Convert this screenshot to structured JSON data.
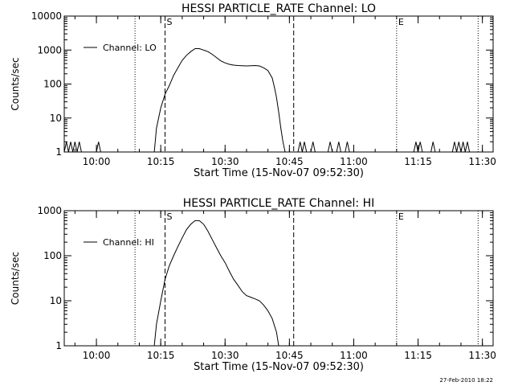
{
  "footer": {
    "timestamp": "27-Feb-2010 18:22"
  },
  "chart_data": [
    {
      "type": "line",
      "title": "HESSI PARTICLE_RATE Channel: LO",
      "xlabel": "Start Time (15-Nov-07 09:52:30)",
      "ylabel": "Counts/sec",
      "yscale": "log",
      "ylim": [
        1,
        10000
      ],
      "yticks": [
        "1",
        "10",
        "100",
        "1000",
        "10000"
      ],
      "xlim": [
        "09:52:30",
        "11:32:30"
      ],
      "xticks": [
        "10:00",
        "10:15",
        "10:30",
        "10:45",
        "11:00",
        "11:15",
        "11:30"
      ],
      "legend": {
        "entry": "Channel: LO",
        "placement": "top-left"
      },
      "markers": [
        {
          "time": "10:09:00",
          "label": "",
          "style": "dotted"
        },
        {
          "time": "10:16:00",
          "label": "S",
          "style": "dashed"
        },
        {
          "time": "10:46:00",
          "label": "",
          "style": "dashed"
        },
        {
          "time": "11:10:00",
          "label": "E",
          "style": "dotted"
        },
        {
          "time": "11:29:00",
          "label": "",
          "style": "dotted"
        }
      ],
      "series": [
        {
          "name": "Channel: LO",
          "points": [
            [
              "09:52:30",
              1
            ],
            [
              "09:53:00",
              2
            ],
            [
              "09:53:30",
              1
            ],
            [
              "09:54:00",
              2
            ],
            [
              "09:54:30",
              1
            ],
            [
              "09:55:00",
              2
            ],
            [
              "09:55:30",
              1
            ],
            [
              "09:56:00",
              2
            ],
            [
              "09:56:30",
              1
            ],
            [
              "10:00:00",
              1
            ],
            [
              "10:00:30",
              2
            ],
            [
              "10:01:00",
              1
            ],
            [
              "10:13:30",
              1
            ],
            [
              "10:14:00",
              5
            ],
            [
              "10:15:00",
              20
            ],
            [
              "10:16:00",
              50
            ],
            [
              "10:17:00",
              90
            ],
            [
              "10:18:00",
              180
            ],
            [
              "10:19:00",
              300
            ],
            [
              "10:20:00",
              500
            ],
            [
              "10:21:00",
              700
            ],
            [
              "10:22:00",
              900
            ],
            [
              "10:23:00",
              1100
            ],
            [
              "10:24:00",
              1100
            ],
            [
              "10:25:00",
              1000
            ],
            [
              "10:26:00",
              900
            ],
            [
              "10:27:00",
              750
            ],
            [
              "10:28:00",
              600
            ],
            [
              "10:29:00",
              480
            ],
            [
              "10:30:00",
              420
            ],
            [
              "10:31:00",
              380
            ],
            [
              "10:32:00",
              360
            ],
            [
              "10:33:00",
              350
            ],
            [
              "10:34:00",
              345
            ],
            [
              "10:35:00",
              340
            ],
            [
              "10:36:00",
              345
            ],
            [
              "10:37:00",
              350
            ],
            [
              "10:38:00",
              340
            ],
            [
              "10:39:00",
              300
            ],
            [
              "10:40:00",
              250
            ],
            [
              "10:41:00",
              150
            ],
            [
              "10:41:30",
              80
            ],
            [
              "10:42:00",
              40
            ],
            [
              "10:42:30",
              15
            ],
            [
              "10:43:00",
              5
            ],
            [
              "10:43:30",
              2
            ],
            [
              "10:44:00",
              1
            ],
            [
              "10:47:00",
              1
            ],
            [
              "10:47:30",
              2
            ],
            [
              "10:48:00",
              1
            ],
            [
              "10:48:30",
              2
            ],
            [
              "10:49:00",
              1
            ],
            [
              "10:50:00",
              1
            ],
            [
              "10:50:30",
              2
            ],
            [
              "10:51:00",
              1
            ],
            [
              "10:54:00",
              1
            ],
            [
              "10:54:30",
              2
            ],
            [
              "10:55:00",
              1
            ],
            [
              "10:56:00",
              1
            ],
            [
              "10:56:30",
              2
            ],
            [
              "10:57:00",
              1
            ],
            [
              "10:58:00",
              1
            ],
            [
              "10:58:30",
              2
            ],
            [
              "10:59:00",
              1
            ],
            [
              "11:14:00",
              1
            ],
            [
              "11:14:30",
              2
            ],
            [
              "11:15:00",
              1
            ],
            [
              "11:15:30",
              2
            ],
            [
              "11:16:00",
              1
            ],
            [
              "11:18:00",
              1
            ],
            [
              "11:18:30",
              2
            ],
            [
              "11:19:00",
              1
            ],
            [
              "11:23:00",
              1
            ],
            [
              "11:23:30",
              2
            ],
            [
              "11:24:00",
              1
            ],
            [
              "11:24:30",
              2
            ],
            [
              "11:25:00",
              1
            ],
            [
              "11:25:30",
              2
            ],
            [
              "11:26:00",
              1
            ],
            [
              "11:26:30",
              2
            ],
            [
              "11:27:00",
              1
            ]
          ]
        }
      ]
    },
    {
      "type": "line",
      "title": "HESSI PARTICLE_RATE Channel: HI",
      "xlabel": "Start Time (15-Nov-07 09:52:30)",
      "ylabel": "Counts/sec",
      "yscale": "log",
      "ylim": [
        1,
        1000
      ],
      "yticks": [
        "1",
        "10",
        "100",
        "1000"
      ],
      "xlim": [
        "09:52:30",
        "11:32:30"
      ],
      "xticks": [
        "10:00",
        "10:15",
        "10:30",
        "10:45",
        "11:00",
        "11:15",
        "11:30"
      ],
      "legend": {
        "entry": "Channel: HI",
        "placement": "top-left"
      },
      "markers": [
        {
          "time": "10:09:00",
          "label": "",
          "style": "dotted"
        },
        {
          "time": "10:16:00",
          "label": "S",
          "style": "dashed"
        },
        {
          "time": "10:46:00",
          "label": "",
          "style": "dashed"
        },
        {
          "time": "11:10:00",
          "label": "E",
          "style": "dotted"
        },
        {
          "time": "11:29:00",
          "label": "",
          "style": "dotted"
        }
      ],
      "series": [
        {
          "name": "Channel: HI",
          "points": [
            [
              "10:13:30",
              1
            ],
            [
              "10:14:00",
              3
            ],
            [
              "10:15:00",
              10
            ],
            [
              "10:16:00",
              30
            ],
            [
              "10:17:00",
              60
            ],
            [
              "10:18:00",
              100
            ],
            [
              "10:19:00",
              160
            ],
            [
              "10:20:00",
              250
            ],
            [
              "10:21:00",
              380
            ],
            [
              "10:22:00",
              500
            ],
            [
              "10:23:00",
              600
            ],
            [
              "10:24:00",
              600
            ],
            [
              "10:25:00",
              500
            ],
            [
              "10:26:00",
              350
            ],
            [
              "10:27:00",
              230
            ],
            [
              "10:28:00",
              150
            ],
            [
              "10:29:00",
              100
            ],
            [
              "10:30:00",
              70
            ],
            [
              "10:31:00",
              45
            ],
            [
              "10:32:00",
              30
            ],
            [
              "10:33:00",
              22
            ],
            [
              "10:34:00",
              16
            ],
            [
              "10:35:00",
              13
            ],
            [
              "10:36:00",
              12
            ],
            [
              "10:37:00",
              11
            ],
            [
              "10:38:00",
              10
            ],
            [
              "10:39:00",
              8
            ],
            [
              "10:40:00",
              6
            ],
            [
              "10:41:00",
              4
            ],
            [
              "10:42:00",
              2
            ],
            [
              "10:42:30",
              1
            ]
          ]
        }
      ]
    }
  ]
}
